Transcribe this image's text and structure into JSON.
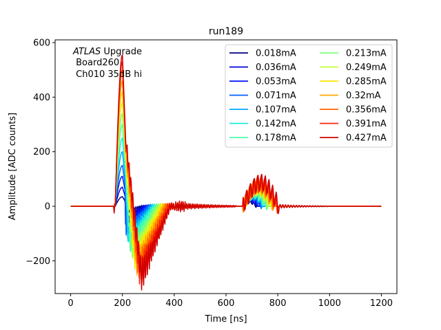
{
  "chart_data": {
    "type": "line",
    "title": "run189",
    "xlabel": "Time [ns]",
    "ylabel": "Amplitude [ADC counts]",
    "xlim": [
      -60,
      1260
    ],
    "ylim": [
      -320,
      610
    ],
    "x_ticks": [
      0,
      200,
      400,
      600,
      800,
      1000,
      1200
    ],
    "x_tick_labels": [
      "0",
      "200",
      "400",
      "600",
      "800",
      "1000",
      "1200"
    ],
    "y_ticks": [
      -200,
      0,
      200,
      400,
      600
    ],
    "y_tick_labels": [
      "−200",
      "0",
      "200",
      "400",
      "600"
    ],
    "grid": false,
    "legend_position": "top-right",
    "legend_columns": 2,
    "annotation": {
      "line1_italic": "ATLAS",
      "line1_rest": " Upgrade",
      "line2": " Board260",
      "line3": " Ch010 35dB hi"
    },
    "series": [
      {
        "name": "0.018mA",
        "color": "#00007f",
        "peak": 35,
        "undershoot": -25,
        "ring": 10,
        "pulse2": 15
      },
      {
        "name": "0.036mA",
        "color": "#0000d7",
        "peak": 70,
        "undershoot": -50,
        "ring": 14,
        "pulse2": 20
      },
      {
        "name": "0.053mA",
        "color": "#0010ff",
        "peak": 110,
        "undershoot": -70,
        "ring": 18,
        "pulse2": 25
      },
      {
        "name": "0.071mA",
        "color": "#0060ff",
        "peak": 150,
        "undershoot": -90,
        "ring": 22,
        "pulse2": 30
      },
      {
        "name": "0.107mA",
        "color": "#00a4ff",
        "peak": 200,
        "undershoot": -110,
        "ring": 26,
        "pulse2": 35
      },
      {
        "name": "0.142mA",
        "color": "#1cecdb",
        "peak": 250,
        "undershoot": -130,
        "ring": 30,
        "pulse2": 40
      },
      {
        "name": "0.178mA",
        "color": "#4fffa7",
        "peak": 300,
        "undershoot": -150,
        "ring": 34,
        "pulse2": 45
      },
      {
        "name": "0.213mA",
        "color": "#7bff7b",
        "peak": 340,
        "undershoot": -170,
        "ring": 38,
        "pulse2": 52
      },
      {
        "name": "0.249mA",
        "color": "#c1ff36",
        "peak": 380,
        "undershoot": -185,
        "ring": 42,
        "pulse2": 58
      },
      {
        "name": "0.285mA",
        "color": "#ffe500",
        "peak": 420,
        "undershoot": -200,
        "ring": 46,
        "pulse2": 64
      },
      {
        "name": "0.32mA",
        "color": "#ffa700",
        "peak": 460,
        "undershoot": -215,
        "ring": 50,
        "pulse2": 70
      },
      {
        "name": "0.356mA",
        "color": "#ff6300",
        "peak": 500,
        "undershoot": -230,
        "ring": 54,
        "pulse2": 76
      },
      {
        "name": "0.391mA",
        "color": "#ff2200",
        "peak": 530,
        "undershoot": -245,
        "ring": 58,
        "pulse2": 82
      },
      {
        "name": "0.427mA",
        "color": "#d10000",
        "peak": 555,
        "undershoot": -255,
        "ring": 62,
        "pulse2": 88
      }
    ]
  }
}
